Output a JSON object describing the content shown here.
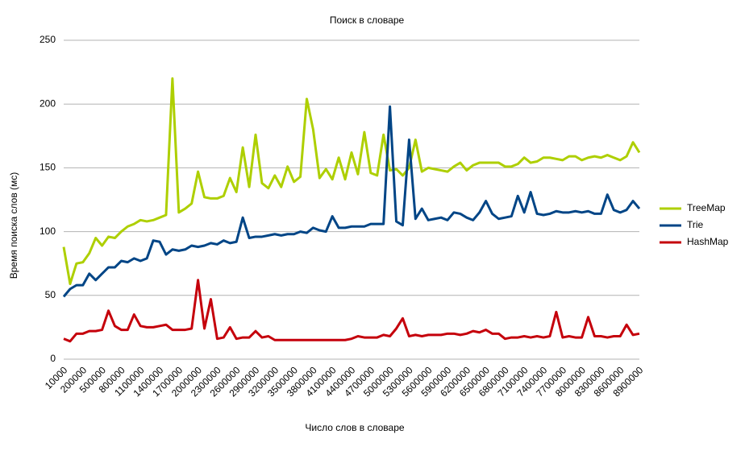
{
  "chart_data": {
    "type": "line",
    "title": "Поиск в словаре",
    "x_label": "Число слов в словаре",
    "y_label": "Время поиска слов (мс)",
    "categories": [
      "10000",
      null,
      null,
      "200000",
      null,
      null,
      "500000",
      null,
      null,
      "800000",
      null,
      null,
      "1100000",
      null,
      null,
      "1400000",
      null,
      null,
      "1700000",
      null,
      null,
      "2000000",
      null,
      null,
      "2300000",
      null,
      null,
      "2600000",
      null,
      null,
      "2900000",
      null,
      null,
      "3200000",
      null,
      null,
      "3500000",
      null,
      null,
      "3800000",
      null,
      null,
      "4100000",
      null,
      null,
      "4400000",
      null,
      null,
      "4700000",
      null,
      null,
      "5000000",
      null,
      null,
      "5300000",
      null,
      null,
      "5600000",
      null,
      null,
      "5900000",
      null,
      null,
      "6200000",
      null,
      null,
      "6500000",
      null,
      null,
      "6800000",
      null,
      null,
      "7100000",
      null,
      null,
      "7400000",
      null,
      null,
      "7700000",
      null,
      null,
      "8000000",
      null,
      null,
      "8300000",
      null,
      null,
      "8600000",
      null,
      null,
      "8900000"
    ],
    "series": [
      {
        "name": "TreeMap",
        "color": "#aecf00",
        "values": [
          88,
          59,
          75,
          76,
          83,
          95,
          89,
          96,
          95,
          100,
          104,
          106,
          109,
          108,
          109,
          111,
          113,
          220,
          115,
          118,
          122,
          147,
          127,
          126,
          126,
          128,
          142,
          131,
          166,
          135,
          176,
          138,
          134,
          144,
          135,
          151,
          139,
          143,
          204,
          180,
          142,
          149,
          141,
          158,
          141,
          162,
          145,
          178,
          146,
          144,
          176,
          148,
          149,
          144,
          150,
          172,
          147,
          150,
          149,
          148,
          147,
          151,
          154,
          148,
          152,
          154,
          154,
          154,
          154,
          151,
          151,
          153,
          158,
          154,
          155,
          158,
          158,
          157,
          156,
          159,
          159,
          156,
          158,
          159,
          158,
          160,
          158,
          156,
          159,
          170,
          162
        ]
      },
      {
        "name": "Trie",
        "color": "#004586",
        "values": [
          49,
          55,
          58,
          58,
          67,
          62,
          67,
          72,
          72,
          77,
          76,
          79,
          77,
          79,
          93,
          92,
          82,
          86,
          85,
          86,
          89,
          88,
          89,
          91,
          90,
          93,
          91,
          92,
          111,
          95,
          96,
          96,
          97,
          98,
          97,
          98,
          98,
          100,
          99,
          103,
          101,
          100,
          112,
          103,
          103,
          104,
          104,
          104,
          106,
          106,
          106,
          198,
          108,
          105,
          172,
          110,
          118,
          109,
          110,
          111,
          109,
          115,
          114,
          111,
          109,
          115,
          124,
          114,
          110,
          111,
          112,
          128,
          115,
          131,
          114,
          113,
          114,
          116,
          115,
          115,
          116,
          115,
          116,
          114,
          114,
          129,
          117,
          115,
          117,
          124,
          118
        ]
      },
      {
        "name": "HashMap",
        "color": "#c5000b",
        "values": [
          16,
          14,
          20,
          20,
          22,
          22,
          23,
          38,
          26,
          23,
          23,
          35,
          26,
          25,
          25,
          26,
          27,
          23,
          23,
          23,
          24,
          62,
          24,
          47,
          16,
          17,
          25,
          16,
          17,
          17,
          22,
          17,
          18,
          15,
          15,
          15,
          15,
          15,
          15,
          15,
          15,
          15,
          15,
          15,
          15,
          16,
          18,
          17,
          17,
          17,
          19,
          18,
          24,
          32,
          18,
          19,
          18,
          19,
          19,
          19,
          20,
          20,
          19,
          20,
          22,
          21,
          23,
          20,
          20,
          16,
          17,
          17,
          18,
          17,
          18,
          17,
          18,
          37,
          17,
          18,
          17,
          17,
          33,
          18,
          18,
          17,
          18,
          18,
          27,
          19,
          20
        ]
      }
    ],
    "ylim": [
      0,
      250
    ],
    "yticks": [
      0,
      50,
      100,
      150,
      200,
      250
    ],
    "grid": true,
    "legend": "right"
  }
}
